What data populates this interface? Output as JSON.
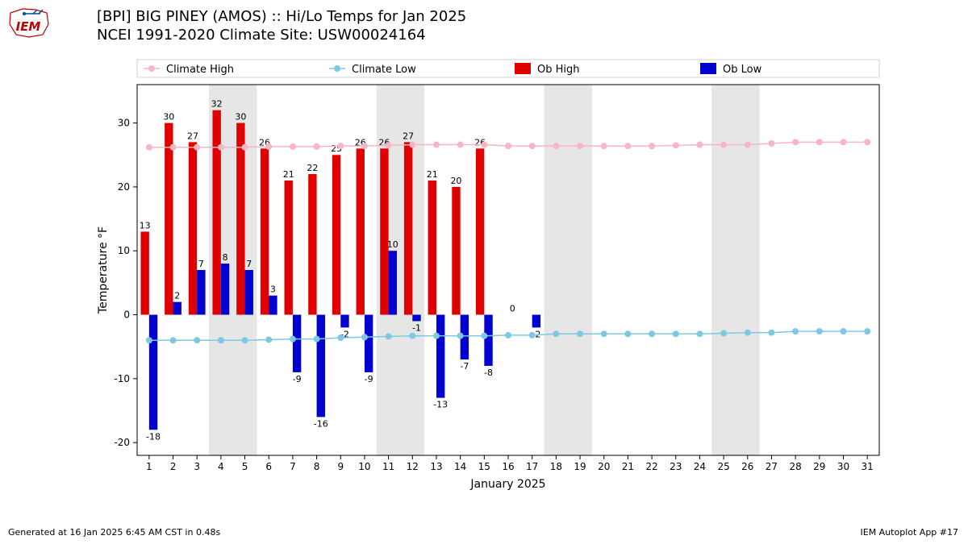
{
  "logo_text": "IEM",
  "logo_colors": {
    "outline": "#c00000",
    "text": "#c00000",
    "wind": "#004b9b"
  },
  "title_line1": "[BPI] BIG PINEY (AMOS) :: Hi/Lo Temps for Jan 2025",
  "title_line2": "NCEI 1991-2020 Climate Site: USW00024164",
  "footer_left": "Generated at 16 Jan 2025 6:45 AM CST in 0.48s",
  "footer_right": "IEM Autoplot App #17",
  "chart": {
    "type": "bar+line",
    "xlabel": "January 2025",
    "ylabel": "Temperature °F",
    "label_fontsize": 14,
    "tick_fontsize": 12,
    "barlabel_fontsize": 11,
    "background_color": "#ffffff",
    "weekend_band_color": "#e6e6e6",
    "axis_color": "#000000",
    "ylim": [
      -22,
      36
    ],
    "ytick_step": 10,
    "yticks": [
      -20,
      -10,
      0,
      10,
      20,
      30
    ],
    "days": [
      1,
      2,
      3,
      4,
      5,
      6,
      7,
      8,
      9,
      10,
      11,
      12,
      13,
      14,
      15,
      16,
      17,
      18,
      19,
      20,
      21,
      22,
      23,
      24,
      25,
      26,
      27,
      28,
      29,
      30,
      31
    ],
    "weekend_days": [
      4,
      5,
      11,
      12,
      18,
      19,
      25,
      26
    ],
    "bar_width": 0.35,
    "series": {
      "climate_high": {
        "label": "Climate High",
        "color": "#f7b6c2",
        "linewidth": 1.5,
        "marker_size": 4,
        "values": [
          26.2,
          26.2,
          26.2,
          26.2,
          26.2,
          26.3,
          26.3,
          26.3,
          26.4,
          26.4,
          26.5,
          26.6,
          26.6,
          26.6,
          26.6,
          26.4,
          26.4,
          26.4,
          26.4,
          26.4,
          26.4,
          26.4,
          26.5,
          26.6,
          26.6,
          26.6,
          26.8,
          27.0,
          27.0,
          27.0,
          27.0
        ]
      },
      "climate_low": {
        "label": "Climate Low",
        "color": "#7ec8e3",
        "linewidth": 1.5,
        "marker_size": 4,
        "values": [
          -4.0,
          -4.0,
          -4.0,
          -4.0,
          -4.0,
          -3.9,
          -3.8,
          -3.8,
          -3.6,
          -3.5,
          -3.4,
          -3.3,
          -3.3,
          -3.3,
          -3.3,
          -3.2,
          -3.2,
          -3.0,
          -3.0,
          -3.0,
          -3.0,
          -3.0,
          -3.0,
          -3.0,
          -2.9,
          -2.8,
          -2.8,
          -2.6,
          -2.6,
          -2.6,
          -2.6
        ]
      },
      "ob_high": {
        "label": "Ob High",
        "color": "#e00000",
        "values": [
          13,
          30,
          27,
          32,
          30,
          26,
          21,
          22,
          25,
          26,
          26,
          27,
          21,
          20,
          26,
          null,
          null,
          null,
          null,
          null,
          null,
          null,
          null,
          null,
          null,
          null,
          null,
          null,
          null,
          null,
          null
        ]
      },
      "ob_low": {
        "label": "Ob Low",
        "color": "#0000d0",
        "values": [
          -18,
          2,
          7,
          8,
          7,
          3,
          -9,
          -16,
          -2,
          -9,
          10,
          -1,
          -13,
          -7,
          -8,
          0,
          -2,
          null,
          null,
          null,
          null,
          null,
          null,
          null,
          null,
          null,
          null,
          null,
          null,
          null,
          null
        ]
      }
    },
    "legend": {
      "position": "top",
      "fontsize": 13,
      "items": [
        "climate_high",
        "climate_low",
        "ob_high",
        "ob_low"
      ]
    }
  }
}
